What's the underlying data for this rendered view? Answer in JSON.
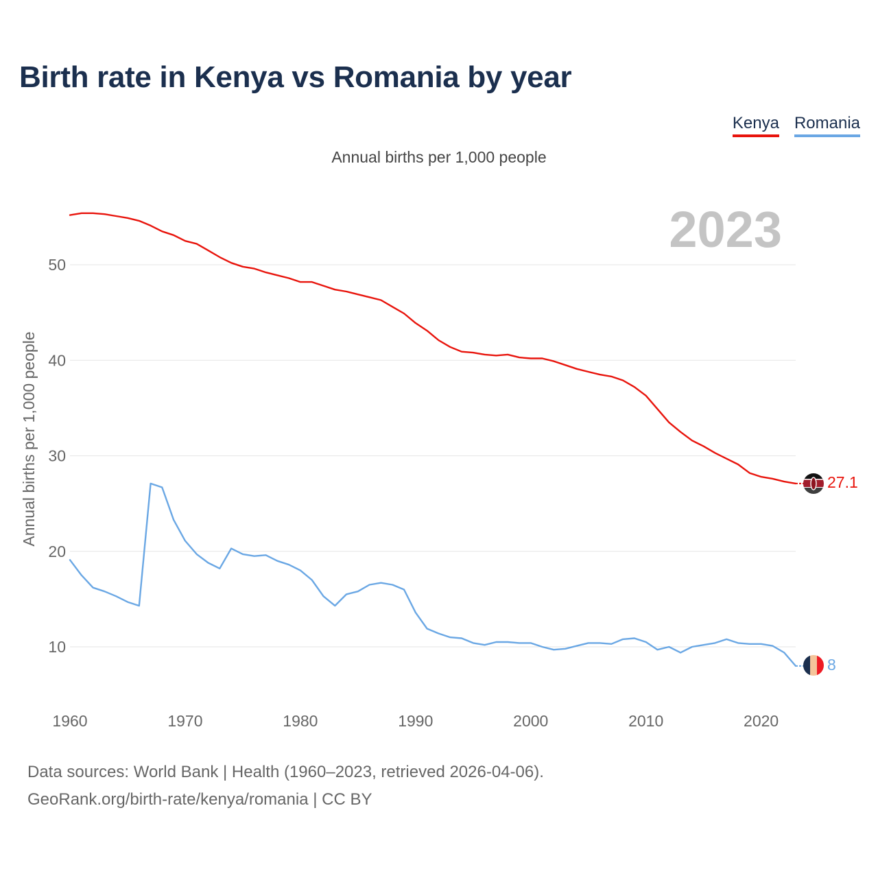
{
  "title": "Birth rate in Kenya vs Romania by year",
  "subtitle": "Annual births per 1,000 people",
  "legend": [
    {
      "label": "Kenya",
      "color": "#e8140c"
    },
    {
      "label": "Romania",
      "color": "#6aa7e4"
    }
  ],
  "year_label": "2023",
  "source_line1": "Data sources: World Bank | Health (1960–2023, retrieved 2026-04-06).",
  "source_line2": "GeoRank.org/birth-rate/kenya/romania | CC BY",
  "chart_data": {
    "type": "line",
    "title": "Birth rate in Kenya vs Romania by year",
    "xlabel": "",
    "ylabel": "Annual births per 1,000 people",
    "xlim": [
      1960,
      2023
    ],
    "ylim": [
      5,
      57
    ],
    "x_ticks": [
      1960,
      1970,
      1980,
      1990,
      2000,
      2010,
      2020
    ],
    "y_ticks": [
      10,
      20,
      30,
      40,
      50
    ],
    "grid": "horizontal",
    "x": [
      1960,
      1961,
      1962,
      1963,
      1964,
      1965,
      1966,
      1967,
      1968,
      1969,
      1970,
      1971,
      1972,
      1973,
      1974,
      1975,
      1976,
      1977,
      1978,
      1979,
      1980,
      1981,
      1982,
      1983,
      1984,
      1985,
      1986,
      1987,
      1988,
      1989,
      1990,
      1991,
      1992,
      1993,
      1994,
      1995,
      1996,
      1997,
      1998,
      1999,
      2000,
      2001,
      2002,
      2003,
      2004,
      2005,
      2006,
      2007,
      2008,
      2009,
      2010,
      2011,
      2012,
      2013,
      2014,
      2015,
      2016,
      2017,
      2018,
      2019,
      2020,
      2021,
      2022,
      2023
    ],
    "series": [
      {
        "name": "Kenya",
        "color": "#e8140c",
        "end_label": "27.1",
        "values": [
          55.2,
          55.4,
          55.4,
          55.3,
          55.1,
          54.9,
          54.6,
          54.1,
          53.5,
          53.1,
          52.5,
          52.2,
          51.5,
          50.8,
          50.2,
          49.8,
          49.6,
          49.2,
          48.9,
          48.6,
          48.2,
          48.2,
          47.8,
          47.4,
          47.2,
          46.9,
          46.6,
          46.3,
          45.6,
          44.9,
          43.9,
          43.1,
          42.1,
          41.4,
          40.9,
          40.8,
          40.6,
          40.5,
          40.6,
          40.3,
          40.2,
          40.2,
          39.9,
          39.5,
          39.1,
          38.8,
          38.5,
          38.3,
          37.9,
          37.2,
          36.3,
          34.9,
          33.5,
          32.5,
          31.6,
          31.0,
          30.3,
          29.7,
          29.1,
          28.2,
          27.8,
          27.6,
          27.3,
          27.1
        ]
      },
      {
        "name": "Romania",
        "color": "#6aa7e4",
        "end_label": "8",
        "values": [
          19.1,
          17.5,
          16.2,
          15.8,
          15.3,
          14.7,
          14.3,
          27.1,
          26.7,
          23.3,
          21.1,
          19.7,
          18.8,
          18.2,
          20.3,
          19.7,
          19.5,
          19.6,
          19.0,
          18.6,
          18.0,
          17.0,
          15.3,
          14.3,
          15.5,
          15.8,
          16.5,
          16.7,
          16.5,
          16.0,
          13.6,
          11.9,
          11.4,
          11.0,
          10.9,
          10.4,
          10.2,
          10.5,
          10.5,
          10.4,
          10.4,
          10.0,
          9.7,
          9.8,
          10.1,
          10.4,
          10.4,
          10.3,
          10.8,
          10.9,
          10.5,
          9.7,
          10.0,
          9.4,
          10.0,
          10.2,
          10.4,
          10.8,
          10.4,
          10.3,
          10.3,
          10.1,
          9.4,
          8.0
        ]
      }
    ]
  }
}
